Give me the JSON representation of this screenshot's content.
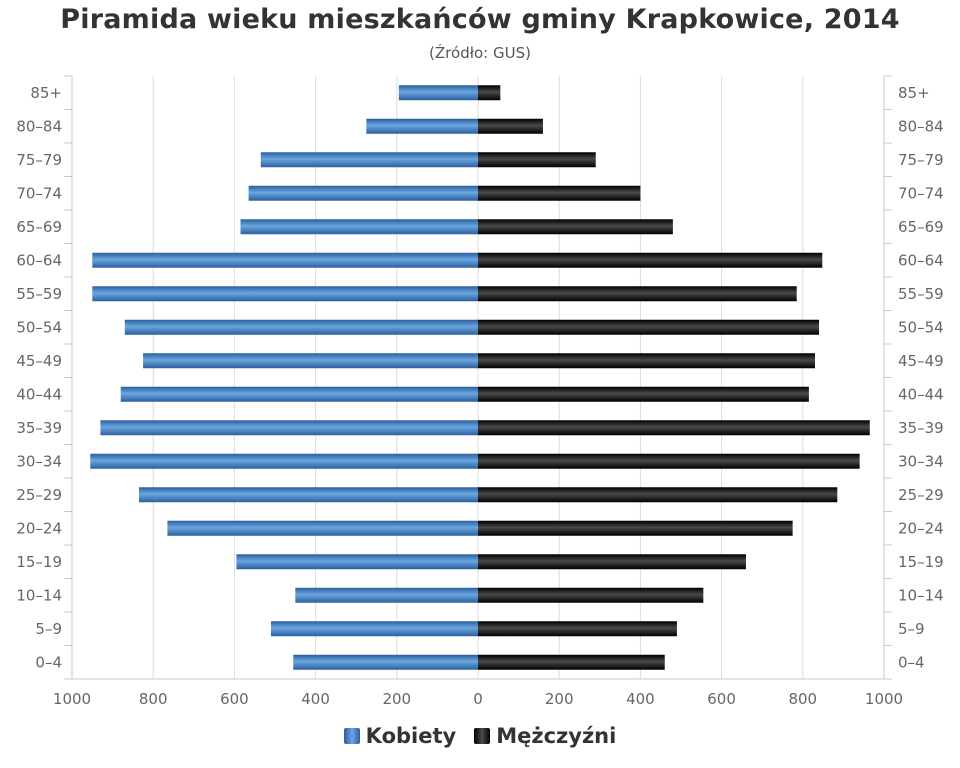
{
  "chart_data": {
    "type": "bar",
    "orientation": "horizontal-pyramid",
    "title": "Piramida wieku mieszkańców gminy Krapkowice, 2014",
    "subtitle": "(Źródło: GUS)",
    "categories": [
      "0–4",
      "5–9",
      "10–14",
      "15–19",
      "20–24",
      "25–29",
      "30–34",
      "35–39",
      "40–44",
      "45–49",
      "50–54",
      "55–59",
      "60–64",
      "65–69",
      "70–74",
      "75–79",
      "80–84",
      "85+"
    ],
    "series": [
      {
        "name": "Kobiety",
        "side": "left",
        "color": "#4a86c5",
        "values": [
          455,
          510,
          450,
          595,
          765,
          835,
          955,
          930,
          880,
          825,
          870,
          950,
          950,
          585,
          565,
          535,
          275,
          195
        ]
      },
      {
        "name": "Mężczyźni",
        "side": "right",
        "color": "#1a1a1a",
        "values": [
          460,
          490,
          555,
          660,
          775,
          885,
          940,
          965,
          815,
          830,
          840,
          785,
          848,
          480,
          400,
          290,
          160,
          55
        ]
      }
    ],
    "xlim": [
      -1000,
      1000
    ],
    "xticks": [
      "1000",
      "800",
      "600",
      "400",
      "200",
      "0",
      "200",
      "400",
      "600",
      "800",
      "1000"
    ],
    "grid": true,
    "legend_position": "bottom"
  }
}
